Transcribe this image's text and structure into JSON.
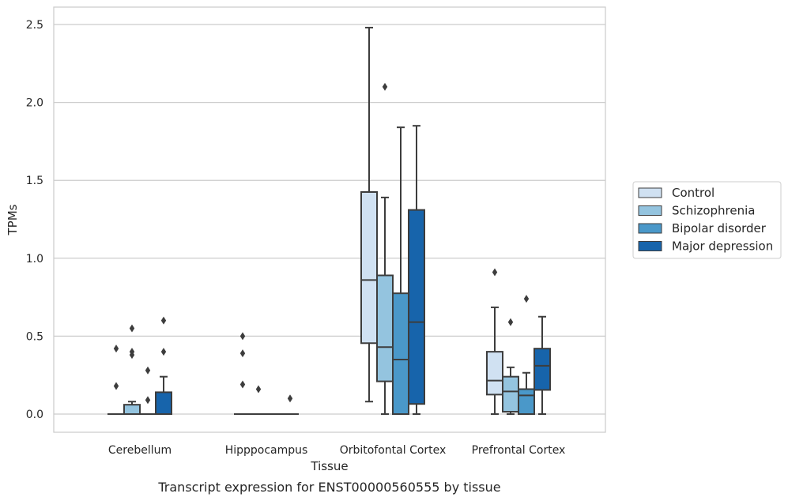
{
  "caption": "Transcript expression for ENST00000560555 by tissue",
  "chart_data": {
    "type": "box",
    "xlabel": "Tissue",
    "ylabel": "TPMs",
    "ylim": [
      -0.12,
      2.6
    ],
    "yticks": [
      0.0,
      0.5,
      1.0,
      1.5,
      2.0,
      2.5
    ],
    "ytick_labels": [
      "0.0",
      "0.5",
      "1.0",
      "1.5",
      "2.0",
      "2.5"
    ],
    "grid": "horizontal",
    "legend_position": "right",
    "categories": [
      "Cerebellum",
      "Hipppocampus",
      "Orbitofontal Cortex",
      "Prefrontal Cortex"
    ],
    "series": [
      {
        "name": "Control",
        "color": "#d0e1f2",
        "boxes": [
          {
            "whislo": 0,
            "q1": 0,
            "med": 0,
            "q3": 0,
            "whishi": 0,
            "fliers": [
              0.42,
              0.18
            ]
          },
          {
            "whislo": 0,
            "q1": 0,
            "med": 0,
            "q3": 0,
            "whishi": 0,
            "fliers": [
              0.5,
              0.39,
              0.19
            ]
          },
          {
            "whislo": 0.08,
            "q1": 0.455,
            "med": 0.86,
            "q3": 1.425,
            "whishi": 2.48,
            "fliers": []
          },
          {
            "whislo": 0,
            "q1": 0.125,
            "med": 0.215,
            "q3": 0.4,
            "whishi": 0.685,
            "fliers": [
              0.91
            ]
          }
        ]
      },
      {
        "name": "Schizophrenia",
        "color": "#94c4df",
        "boxes": [
          {
            "whislo": 0,
            "q1": 0,
            "med": 0,
            "q3": 0.06,
            "whishi": 0.08,
            "fliers": [
              0.55,
              0.4,
              0.38
            ]
          },
          {
            "whislo": 0,
            "q1": 0,
            "med": 0,
            "q3": 0,
            "whishi": 0,
            "fliers": [
              0.16
            ]
          },
          {
            "whislo": 0,
            "q1": 0.21,
            "med": 0.43,
            "q3": 0.89,
            "whishi": 1.39,
            "fliers": [
              2.1
            ]
          },
          {
            "whislo": 0,
            "q1": 0.015,
            "med": 0.145,
            "q3": 0.24,
            "whishi": 0.3,
            "fliers": [
              0.59
            ]
          }
        ]
      },
      {
        "name": "Bipolar disorder",
        "color": "#4a98c9",
        "boxes": [
          {
            "whislo": 0,
            "q1": 0,
            "med": 0,
            "q3": 0,
            "whishi": 0,
            "fliers": [
              0.28,
              0.09
            ]
          },
          {
            "whislo": 0,
            "q1": 0,
            "med": 0,
            "q3": 0,
            "whishi": 0,
            "fliers": []
          },
          {
            "whislo": 0,
            "q1": 0,
            "med": 0.35,
            "q3": 0.775,
            "whishi": 1.84,
            "fliers": []
          },
          {
            "whislo": 0,
            "q1": 0,
            "med": 0.12,
            "q3": 0.16,
            "whishi": 0.265,
            "fliers": [
              0.74
            ]
          }
        ]
      },
      {
        "name": "Major depression",
        "color": "#1764ab",
        "boxes": [
          {
            "whislo": 0,
            "q1": 0,
            "med": 0,
            "q3": 0.14,
            "whishi": 0.24,
            "fliers": [
              0.6,
              0.4
            ]
          },
          {
            "whislo": 0,
            "q1": 0,
            "med": 0,
            "q3": 0,
            "whishi": 0,
            "fliers": [
              0.1
            ]
          },
          {
            "whislo": 0,
            "q1": 0.065,
            "med": 0.59,
            "q3": 1.31,
            "whishi": 1.85,
            "fliers": []
          },
          {
            "whislo": 0,
            "q1": 0.155,
            "med": 0.31,
            "q3": 0.42,
            "whishi": 0.625,
            "fliers": []
          }
        ]
      }
    ]
  }
}
